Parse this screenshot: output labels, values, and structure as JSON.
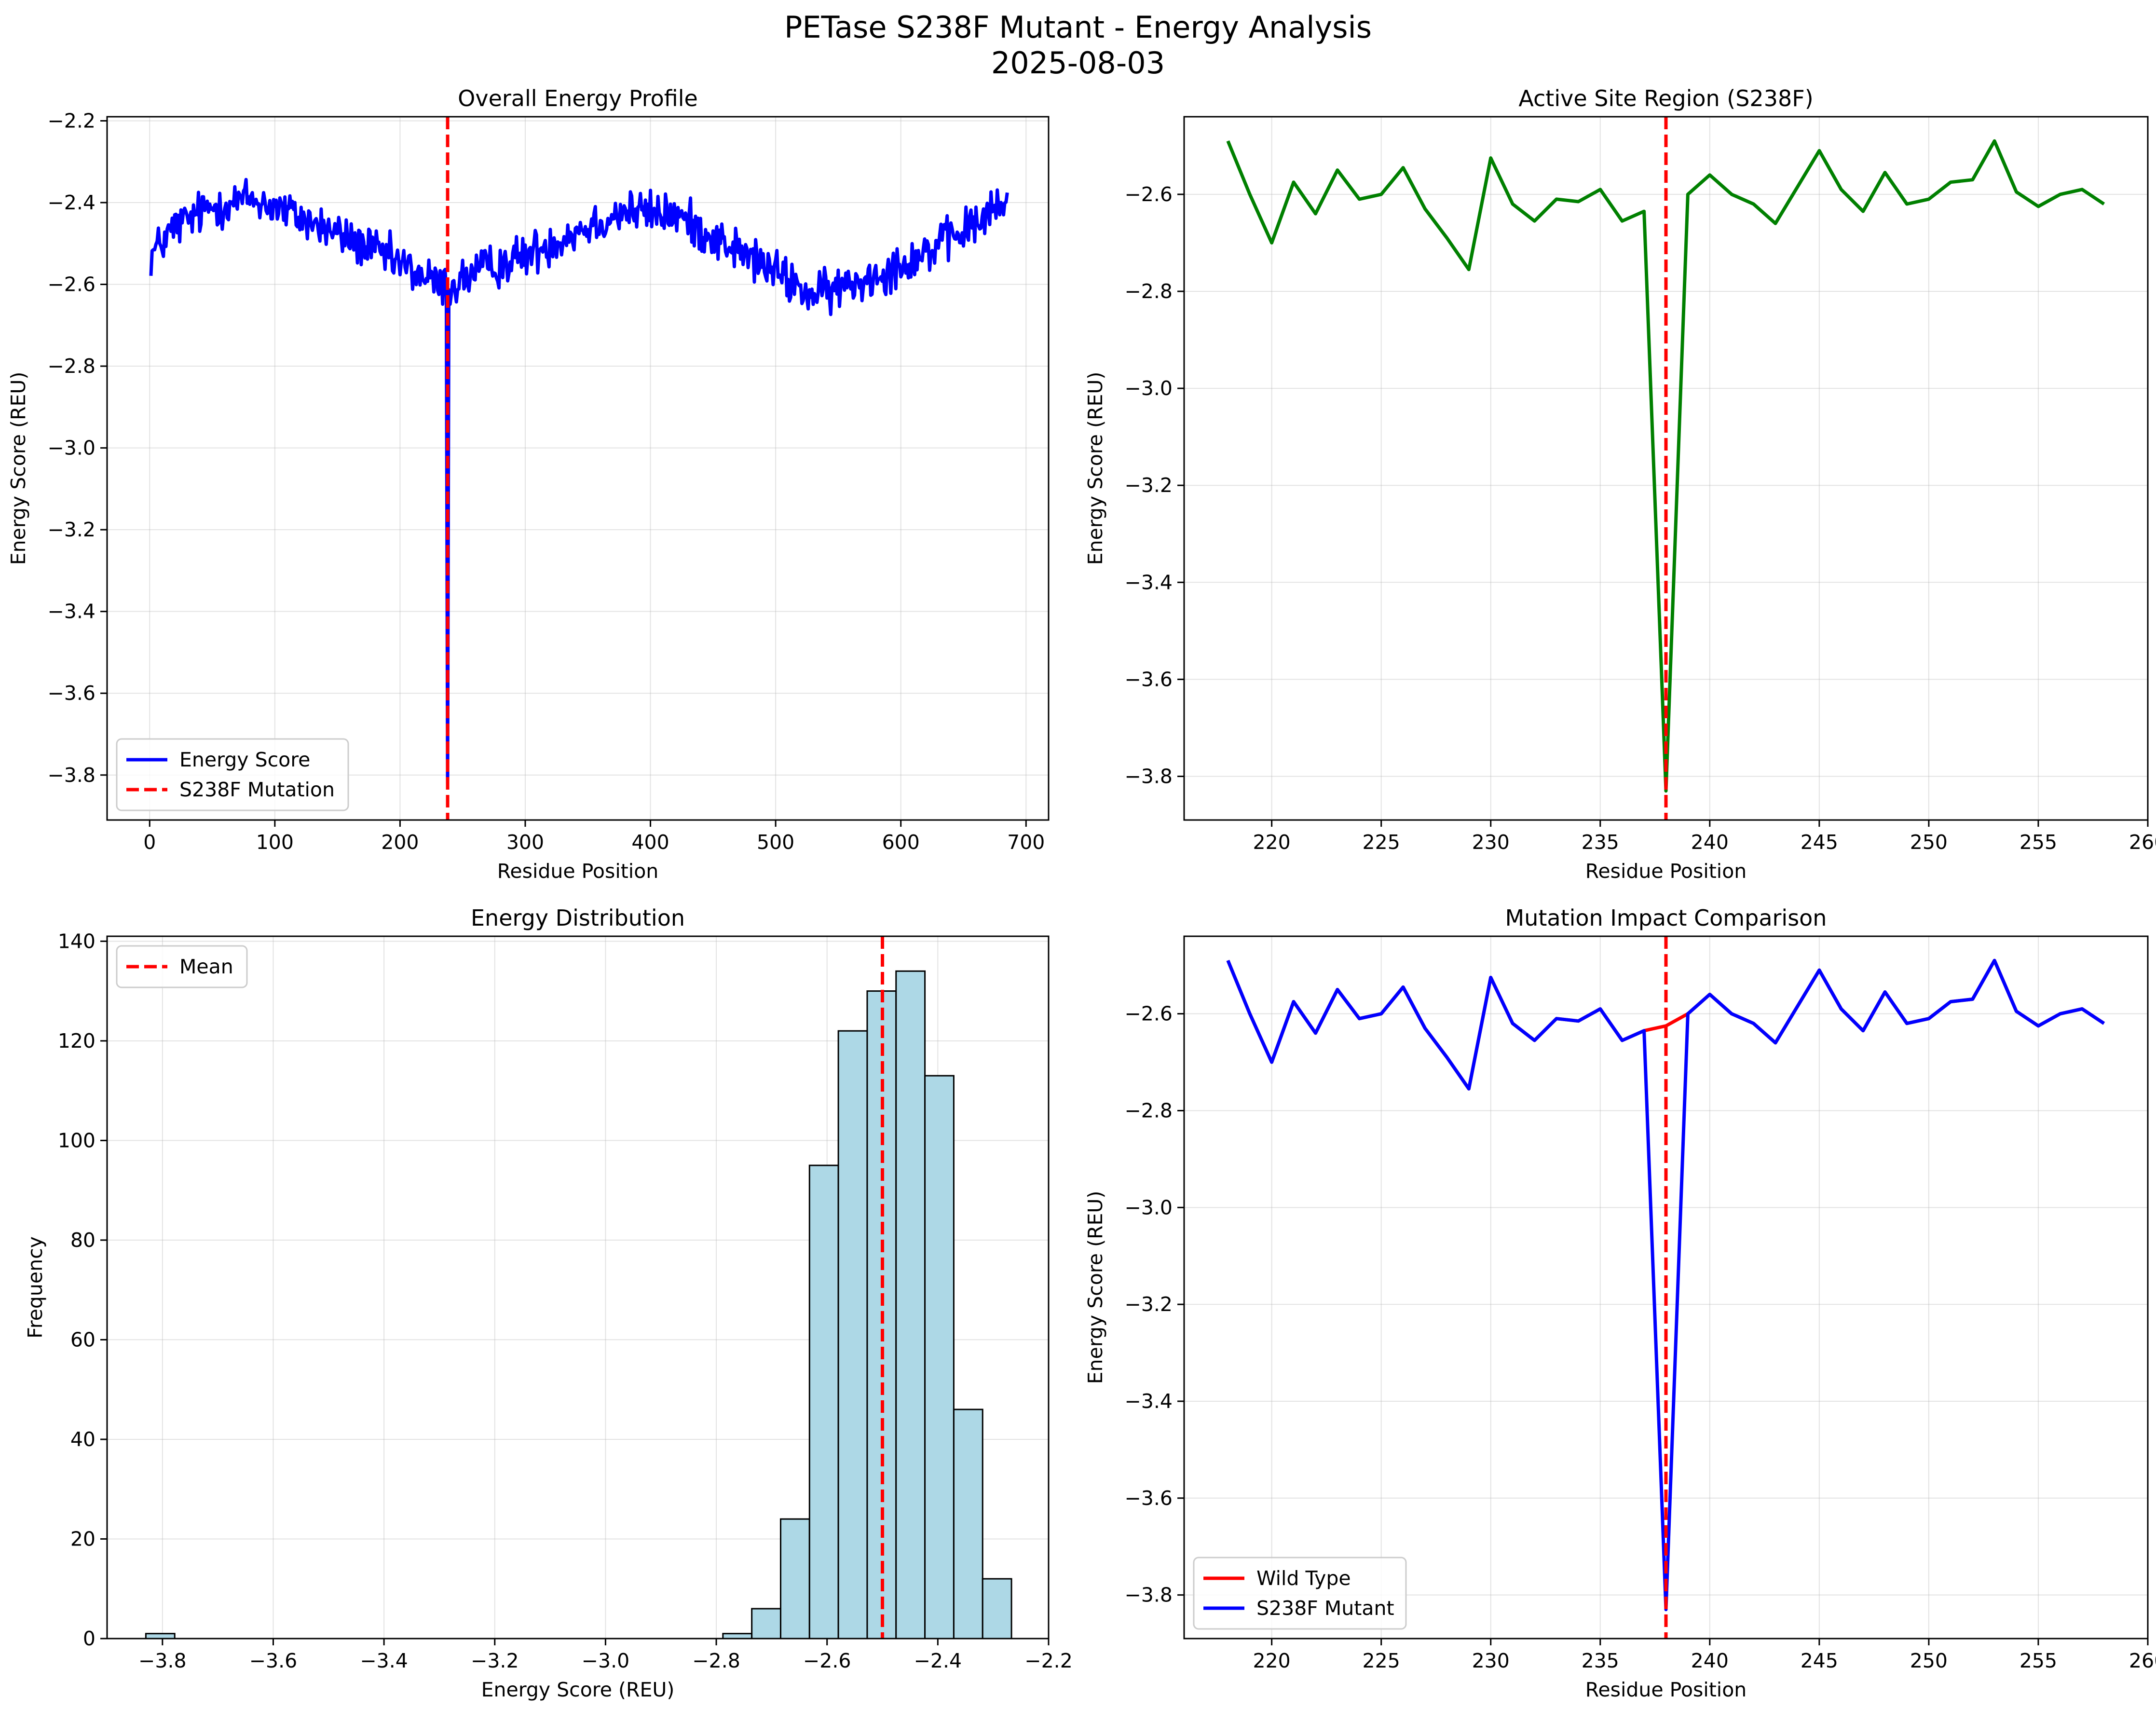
{
  "figure": {
    "title": "PETase S238F Mutant - Energy Analysis",
    "subtitle": "2025-08-03"
  },
  "colors": {
    "energy_line": "#0000ff",
    "active_line": "#008000",
    "mutation_line": "#ff0000",
    "hist_fill": "#add8e6",
    "hist_edge": "#000000"
  },
  "chart_data": [
    {
      "id": "overall",
      "type": "line",
      "title": "Overall Energy Profile",
      "xlabel": "Residue Position",
      "ylabel": "Energy Score (REU)",
      "xlim": [
        -34,
        718
      ],
      "ylim": [
        -3.91,
        -2.19
      ],
      "xticks": [
        0,
        100,
        200,
        300,
        400,
        500,
        600,
        700
      ],
      "xticklabels": [
        "0",
        "100",
        "200",
        "300",
        "400",
        "500",
        "600",
        "700"
      ],
      "yticks": [
        -3.8,
        -3.6,
        -3.4,
        -3.2,
        -3.0,
        -2.8,
        -2.6,
        -2.4,
        -2.2
      ],
      "yticklabels": [
        "−3.8",
        "−3.6",
        "−3.4",
        "−3.2",
        "−3.0",
        "−2.8",
        "−2.6",
        "−2.4",
        "−2.2"
      ],
      "grid": true,
      "legend_position": "lower-left",
      "series": [
        {
          "name": "Energy Score",
          "style": "noisy-profile",
          "x_start": 1,
          "x_end": 685,
          "baseline_x": [
            1,
            20,
            50,
            80,
            100,
            130,
            160,
            200,
            230,
            237,
            239,
            260,
            300,
            340,
            380,
            420,
            460,
            500,
            530,
            560,
            600,
            640,
            685
          ],
          "baseline_y": [
            -2.53,
            -2.46,
            -2.41,
            -2.39,
            -2.41,
            -2.45,
            -2.49,
            -2.55,
            -2.6,
            -2.6,
            -2.61,
            -2.57,
            -2.53,
            -2.47,
            -2.42,
            -2.43,
            -2.5,
            -2.57,
            -2.63,
            -2.6,
            -2.55,
            -2.49,
            -2.4
          ],
          "noise_amplitude": 0.04,
          "spike": {
            "x": 238,
            "y": -3.82
          },
          "color": "#0000ff"
        }
      ],
      "vlines": [
        {
          "name": "S238F Mutation",
          "x": 238,
          "color": "#ff0000",
          "style": "dashed"
        }
      ]
    },
    {
      "id": "active",
      "type": "line",
      "title": "Active Site Region (S238F)",
      "xlabel": "Residue Position",
      "ylabel": "Energy Score (REU)",
      "xlim": [
        216,
        260
      ],
      "ylim": [
        -3.89,
        -2.44
      ],
      "xticks": [
        220,
        225,
        230,
        235,
        240,
        245,
        250,
        255,
        260
      ],
      "xticklabels": [
        "220",
        "225",
        "230",
        "235",
        "240",
        "245",
        "250",
        "255",
        "260"
      ],
      "yticks": [
        -3.8,
        -3.6,
        -3.4,
        -3.2,
        -3.0,
        -2.8,
        -2.6
      ],
      "yticklabels": [
        "−3.8",
        "−3.6",
        "−3.4",
        "−3.2",
        "−3.0",
        "−2.8",
        "−2.6"
      ],
      "grid": true,
      "series": [
        {
          "name": "",
          "x": [
            218,
            219,
            220,
            221,
            222,
            223,
            224,
            225,
            226,
            227,
            228,
            229,
            230,
            231,
            232,
            233,
            234,
            235,
            236,
            237,
            238,
            239,
            240,
            241,
            242,
            243,
            244,
            245,
            246,
            247,
            248,
            249,
            250,
            251,
            252,
            253,
            254,
            255,
            256,
            257,
            258
          ],
          "y": [
            -2.49,
            -2.6,
            -2.7,
            -2.575,
            -2.64,
            -2.55,
            -2.61,
            -2.6,
            -2.545,
            -2.63,
            -2.69,
            -2.755,
            -2.525,
            -2.62,
            -2.655,
            -2.61,
            -2.615,
            -2.59,
            -2.655,
            -2.635,
            -3.83,
            -2.6,
            -2.56,
            -2.6,
            -2.62,
            -2.66,
            -2.585,
            -2.51,
            -2.59,
            -2.635,
            -2.555,
            -2.62,
            -2.61,
            -2.575,
            -2.57,
            -2.49,
            -2.595,
            -2.625,
            -2.6,
            -2.59,
            -2.62
          ],
          "color": "#008000"
        }
      ],
      "vlines": [
        {
          "name": "",
          "x": 238,
          "color": "#ff0000",
          "style": "dashed"
        }
      ]
    },
    {
      "id": "hist",
      "type": "bar",
      "title": "Energy Distribution",
      "xlabel": "Energy Score (REU)",
      "ylabel": "Frequency",
      "xlim": [
        -3.9,
        -2.2
      ],
      "ylim": [
        0,
        141
      ],
      "xticks": [
        -3.8,
        -3.6,
        -3.4,
        -3.2,
        -3.0,
        -2.8,
        -2.6,
        -2.4,
        -2.2
      ],
      "xticklabels": [
        "−3.8",
        "−3.6",
        "−3.4",
        "−3.2",
        "−3.0",
        "−2.8",
        "−2.6",
        "−2.4",
        "−2.2"
      ],
      "yticks": [
        0,
        20,
        40,
        60,
        80,
        100,
        120,
        140
      ],
      "yticklabels": [
        "0",
        "20",
        "40",
        "60",
        "80",
        "100",
        "120",
        "140"
      ],
      "grid": true,
      "legend_position": "upper-left",
      "bin_start": -3.83,
      "bin_width": 0.0521,
      "counts": [
        1,
        0,
        0,
        0,
        0,
        0,
        0,
        0,
        0,
        0,
        0,
        0,
        0,
        0,
        0,
        0,
        0,
        0,
        0,
        0,
        1,
        6,
        24,
        95,
        122,
        130,
        134,
        113,
        46,
        12
      ],
      "vlines": [
        {
          "name": "Mean",
          "x": -2.5,
          "color": "#ff0000",
          "style": "dashed"
        }
      ]
    },
    {
      "id": "compare",
      "type": "line",
      "title": "Mutation Impact Comparison",
      "xlabel": "Residue Position",
      "ylabel": "Energy Score (REU)",
      "xlim": [
        216,
        260
      ],
      "ylim": [
        -3.89,
        -2.44
      ],
      "xticks": [
        220,
        225,
        230,
        235,
        240,
        245,
        250,
        255,
        260
      ],
      "xticklabels": [
        "220",
        "225",
        "230",
        "235",
        "240",
        "245",
        "250",
        "255",
        "260"
      ],
      "yticks": [
        -3.8,
        -3.6,
        -3.4,
        -3.2,
        -3.0,
        -2.8,
        -2.6
      ],
      "yticklabels": [
        "−3.8",
        "−3.6",
        "−3.4",
        "−3.2",
        "−3.0",
        "−2.8",
        "−2.6"
      ],
      "grid": true,
      "legend_position": "lower-left",
      "series": [
        {
          "name": "Wild Type",
          "x": [
            218,
            219,
            220,
            221,
            222,
            223,
            224,
            225,
            226,
            227,
            228,
            229,
            230,
            231,
            232,
            233,
            234,
            235,
            236,
            237,
            238,
            239,
            240,
            241,
            242,
            243,
            244,
            245,
            246,
            247,
            248,
            249,
            250,
            251,
            252,
            253,
            254,
            255,
            256,
            257,
            258
          ],
          "y": [
            -2.49,
            -2.6,
            -2.7,
            -2.575,
            -2.64,
            -2.55,
            -2.61,
            -2.6,
            -2.545,
            -2.63,
            -2.69,
            -2.755,
            -2.525,
            -2.62,
            -2.655,
            -2.61,
            -2.615,
            -2.59,
            -2.655,
            -2.635,
            -2.625,
            -2.6,
            -2.56,
            -2.6,
            -2.62,
            -2.66,
            -2.585,
            -2.51,
            -2.59,
            -2.635,
            -2.555,
            -2.62,
            -2.61,
            -2.575,
            -2.57,
            -2.49,
            -2.595,
            -2.625,
            -2.6,
            -2.59,
            -2.62
          ],
          "color": "#ff0000"
        },
        {
          "name": "S238F Mutant",
          "x": [
            218,
            219,
            220,
            221,
            222,
            223,
            224,
            225,
            226,
            227,
            228,
            229,
            230,
            231,
            232,
            233,
            234,
            235,
            236,
            237,
            238,
            239,
            240,
            241,
            242,
            243,
            244,
            245,
            246,
            247,
            248,
            249,
            250,
            251,
            252,
            253,
            254,
            255,
            256,
            257,
            258
          ],
          "y": [
            -2.49,
            -2.6,
            -2.7,
            -2.575,
            -2.64,
            -2.55,
            -2.61,
            -2.6,
            -2.545,
            -2.63,
            -2.69,
            -2.755,
            -2.525,
            -2.62,
            -2.655,
            -2.61,
            -2.615,
            -2.59,
            -2.655,
            -2.635,
            -3.83,
            -2.6,
            -2.56,
            -2.6,
            -2.62,
            -2.66,
            -2.585,
            -2.51,
            -2.59,
            -2.635,
            -2.555,
            -2.62,
            -2.61,
            -2.575,
            -2.57,
            -2.49,
            -2.595,
            -2.625,
            -2.6,
            -2.59,
            -2.62
          ],
          "color": "#0000ff"
        }
      ],
      "vlines": [
        {
          "name": "",
          "x": 238,
          "color": "#ff0000",
          "style": "dashed"
        }
      ]
    }
  ]
}
